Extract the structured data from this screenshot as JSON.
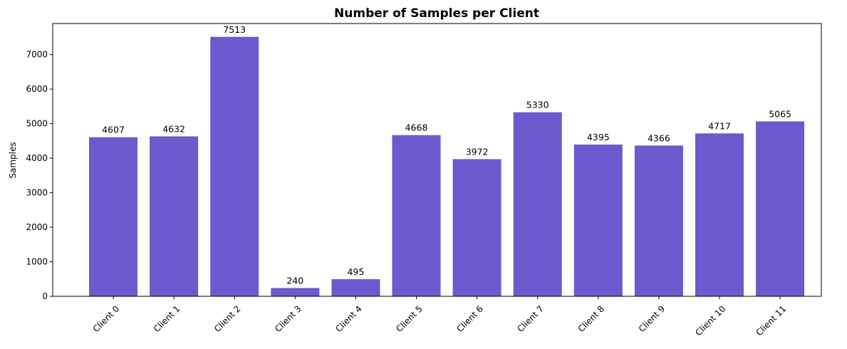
{
  "chart_data": {
    "type": "bar",
    "title": "Number of Samples per Client",
    "xlabel": "",
    "ylabel": "Samples",
    "categories": [
      "Client 0",
      "Client 1",
      "Client 2",
      "Client 3",
      "Client 4",
      "Client 5",
      "Client 6",
      "Client 7",
      "Client 8",
      "Client 9",
      "Client 10",
      "Client 11"
    ],
    "values": [
      4607,
      4632,
      7513,
      240,
      495,
      4668,
      3972,
      5330,
      4395,
      4366,
      4717,
      5065
    ],
    "ylim": [
      0,
      7900
    ],
    "yticks": [
      0,
      1000,
      2000,
      3000,
      4000,
      5000,
      6000,
      7000
    ],
    "bar_color": "#6a5acd",
    "grid": false,
    "legend": "none"
  }
}
